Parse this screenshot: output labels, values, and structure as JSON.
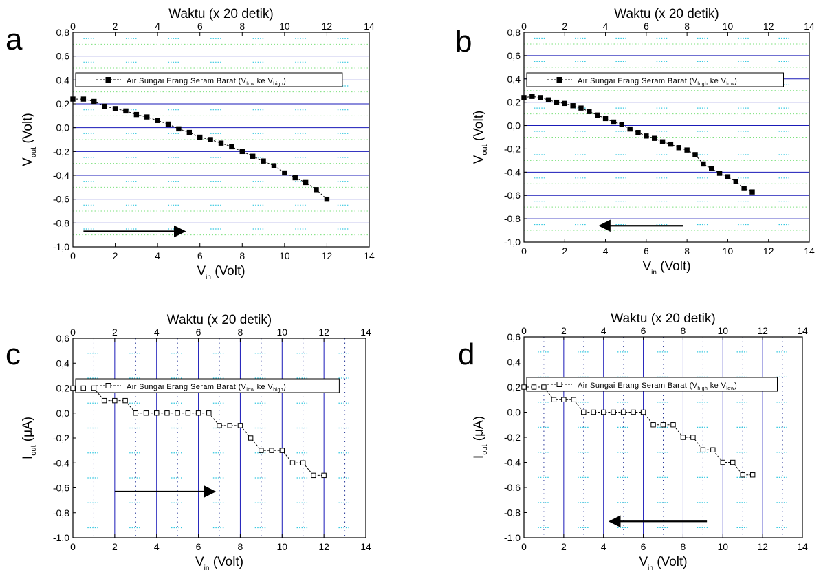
{
  "chart_data": [
    {
      "panel_letter": "a",
      "type": "line",
      "top_axis_label": "Waktu (x 20 detik)",
      "x_label": {
        "main": "V",
        "sub": "in",
        "rest": " (Volt)"
      },
      "y_label": {
        "main": "V",
        "sub": "out",
        "rest": " (Volt)"
      },
      "xlim": [
        0,
        14
      ],
      "ylim": [
        -1.0,
        0.8
      ],
      "x_ticks": [
        0,
        2,
        4,
        6,
        8,
        10,
        12,
        14
      ],
      "x_tick_labels": [
        "0",
        "2",
        "4",
        "6",
        "8",
        "10",
        "12",
        "14"
      ],
      "top_ticks": [
        0,
        2,
        4,
        6,
        8,
        10,
        12,
        14
      ],
      "top_tick_labels": [
        "0",
        "2",
        "4",
        "6",
        "8",
        "10",
        "12",
        "14"
      ],
      "y_ticks": [
        -1.0,
        -0.8,
        -0.6,
        -0.4,
        -0.2,
        0.0,
        0.2,
        0.4,
        0.6,
        0.8
      ],
      "y_tick_labels": [
        "-1,0",
        "-0,8",
        "-0,6",
        "-0,4",
        "-0,2",
        "0,0",
        "0,2",
        "0,4",
        "0,6",
        "0,8"
      ],
      "grid": "horizontal",
      "legend": {
        "position": "top",
        "prefix": "Air Sungai Erang Seram Barat (V",
        "sub1": "low",
        "middle": " ke V",
        "sub2": "high",
        "suffix": ")"
      },
      "marker": "filled-square",
      "series": [
        {
          "x": [
            0.0,
            0.5,
            1.0,
            1.5,
            2.0,
            2.5,
            3.0,
            3.5,
            4.0,
            4.5,
            5.0,
            5.5,
            6.0,
            6.5,
            7.0,
            7.5,
            8.0,
            8.5,
            9.0,
            9.5,
            10.0,
            10.5,
            11.0,
            11.5,
            12.0
          ],
          "y": [
            0.24,
            0.24,
            0.22,
            0.18,
            0.16,
            0.14,
            0.11,
            0.09,
            0.06,
            0.03,
            -0.01,
            -0.04,
            -0.08,
            -0.1,
            -0.13,
            -0.16,
            -0.2,
            -0.24,
            -0.28,
            -0.32,
            -0.38,
            -0.42,
            -0.46,
            -0.52,
            -0.6
          ]
        }
      ],
      "arrow": {
        "x_from": 0.5,
        "x_to": 5.2,
        "y": -0.87
      }
    },
    {
      "panel_letter": "b",
      "type": "line",
      "top_axis_label": "Waktu (x 20 detik)",
      "x_label": {
        "main": "V",
        "sub": "in",
        "rest": " (Volt)"
      },
      "y_label": {
        "main": "V",
        "sub": "out",
        "rest": " (Volt)"
      },
      "xlim": [
        0,
        14
      ],
      "ylim": [
        -1.0,
        0.8
      ],
      "x_ticks": [
        0,
        2,
        4,
        6,
        8,
        10,
        12,
        14
      ],
      "x_tick_labels": [
        "0",
        "2",
        "4",
        "6",
        "8",
        "10",
        "12",
        "14"
      ],
      "top_ticks": [
        0,
        2,
        4,
        6,
        8,
        10,
        12,
        14
      ],
      "top_tick_labels": [
        "0",
        "2",
        "4",
        "6",
        "8",
        "10",
        "12",
        "14"
      ],
      "y_ticks": [
        -1.0,
        -0.8,
        -0.6,
        -0.4,
        -0.2,
        0.0,
        0.2,
        0.4,
        0.6,
        0.8
      ],
      "y_tick_labels": [
        "-1,0",
        "-0,8",
        "-0,6",
        "-0,4",
        "-0,2",
        "0,0",
        "0,2",
        "0,4",
        "0,6",
        "0,8"
      ],
      "grid": "horizontal",
      "legend": {
        "position": "top",
        "prefix": "Air Sungai Erang Seram Barat (V",
        "sub1": "high",
        "middle": " ke V",
        "sub2": "low",
        "suffix": ")"
      },
      "marker": "filled-square",
      "series": [
        {
          "x": [
            0.0,
            0.4,
            0.8,
            1.2,
            1.6,
            2.0,
            2.4,
            2.8,
            3.2,
            3.6,
            4.0,
            4.4,
            4.8,
            5.2,
            5.6,
            6.0,
            6.4,
            6.8,
            7.2,
            7.6,
            8.0,
            8.4,
            8.8,
            9.2,
            9.6,
            10.0,
            10.4,
            10.8,
            11.2
          ],
          "y": [
            0.24,
            0.25,
            0.24,
            0.22,
            0.2,
            0.19,
            0.17,
            0.15,
            0.12,
            0.09,
            0.06,
            0.03,
            0.01,
            -0.03,
            -0.06,
            -0.09,
            -0.11,
            -0.14,
            -0.16,
            -0.19,
            -0.21,
            -0.25,
            -0.33,
            -0.37,
            -0.41,
            -0.44,
            -0.48,
            -0.54,
            -0.57
          ]
        }
      ],
      "arrow": {
        "x_from": 7.8,
        "x_to": 3.8,
        "y": -0.86
      }
    },
    {
      "panel_letter": "c",
      "type": "line",
      "top_axis_label": "Waktu (x 20 detik)",
      "x_label": {
        "main": "V",
        "sub": "in",
        "rest": " (Volt)"
      },
      "y_label": {
        "main": "I",
        "sub": "out",
        "rest": " (μA)"
      },
      "xlim": [
        0,
        14
      ],
      "ylim": [
        -1.0,
        0.6
      ],
      "x_ticks": [
        0,
        2,
        4,
        6,
        8,
        10,
        12,
        14
      ],
      "x_tick_labels": [
        "0",
        "2",
        "4",
        "6",
        "8",
        "10",
        "12",
        "14"
      ],
      "top_ticks": [
        0,
        2,
        4,
        6,
        8,
        10,
        12,
        14
      ],
      "top_tick_labels": [
        "0",
        "2",
        "4",
        "6",
        "8",
        "10",
        "12",
        "14"
      ],
      "y_ticks": [
        -1.0,
        -0.8,
        -0.6,
        -0.4,
        -0.2,
        0.0,
        0.2,
        0.4,
        0.6
      ],
      "y_tick_labels": [
        "-1,0",
        "-0,8",
        "-0,6",
        "-0,4",
        "-0,2",
        "0,0",
        "0,2",
        "0,4",
        "0,6"
      ],
      "grid": "vertical",
      "legend": {
        "position": "top",
        "prefix": "Air Sungai Erang Seram Barat (V",
        "sub1": "low",
        "middle": " ke V",
        "sub2": "high",
        "suffix": ")"
      },
      "marker": "open-square",
      "series": [
        {
          "x": [
            0.0,
            0.5,
            1.0,
            1.5,
            2.0,
            2.5,
            3.0,
            3.5,
            4.0,
            4.5,
            5.0,
            5.5,
            6.0,
            6.5,
            7.0,
            7.5,
            8.0,
            8.5,
            9.0,
            9.5,
            10.0,
            10.5,
            11.0,
            11.5,
            12.0
          ],
          "y": [
            0.2,
            0.2,
            0.2,
            0.1,
            0.1,
            0.1,
            0.0,
            0.0,
            0.0,
            0.0,
            0.0,
            0.0,
            0.0,
            0.0,
            -0.1,
            -0.1,
            -0.1,
            -0.2,
            -0.3,
            -0.3,
            -0.3,
            -0.4,
            -0.4,
            -0.5,
            -0.5
          ]
        }
      ],
      "arrow": {
        "x_from": 2.0,
        "x_to": 6.7,
        "y": -0.63
      }
    },
    {
      "panel_letter": "d",
      "type": "line",
      "top_axis_label": "Waktu (x 20 detik)",
      "x_label": {
        "main": "V",
        "sub": "in",
        "rest": " (Volt)"
      },
      "y_label": {
        "main": "I",
        "sub": "out",
        "rest": " (μA)"
      },
      "xlim": [
        0,
        14
      ],
      "ylim": [
        -1.0,
        0.6
      ],
      "x_ticks": [
        0,
        2,
        4,
        6,
        8,
        10,
        12,
        14
      ],
      "x_tick_labels": [
        "0",
        "2",
        "4",
        "6",
        "8",
        "10",
        "12",
        "14"
      ],
      "top_ticks": [
        0,
        2,
        4,
        6,
        8,
        10,
        12,
        14
      ],
      "top_tick_labels": [
        "0",
        "2",
        "4",
        "6",
        "8",
        "10",
        "12",
        "14"
      ],
      "y_ticks": [
        -1.0,
        -0.8,
        -0.6,
        -0.4,
        -0.2,
        0.0,
        0.2,
        0.4,
        0.6
      ],
      "y_tick_labels": [
        "-1,0",
        "-0,8",
        "-0,6",
        "-0,4",
        "-0,2",
        "0,0",
        "0,2",
        "0,4",
        "0,6"
      ],
      "grid": "vertical",
      "legend": {
        "position": "top",
        "prefix": "Air Sungai Erang Seram Barat (V",
        "sub1": "high",
        "middle": " ke V",
        "sub2": "low",
        "suffix": ")"
      },
      "marker": "open-square",
      "series": [
        {
          "x": [
            0.0,
            0.5,
            1.0,
            1.5,
            2.0,
            2.5,
            3.0,
            3.5,
            4.0,
            4.5,
            5.0,
            5.5,
            6.0,
            6.5,
            7.0,
            7.5,
            8.0,
            8.5,
            9.0,
            9.5,
            10.0,
            10.5,
            11.0,
            11.5
          ],
          "y": [
            0.2,
            0.2,
            0.2,
            0.1,
            0.1,
            0.1,
            0.0,
            0.0,
            0.0,
            0.0,
            0.0,
            0.0,
            0.0,
            -0.1,
            -0.1,
            -0.1,
            -0.2,
            -0.2,
            -0.3,
            -0.3,
            -0.4,
            -0.4,
            -0.5,
            -0.5
          ]
        }
      ],
      "arrow": {
        "x_from": 9.2,
        "x_to": 4.4,
        "y": -0.87
      }
    }
  ]
}
